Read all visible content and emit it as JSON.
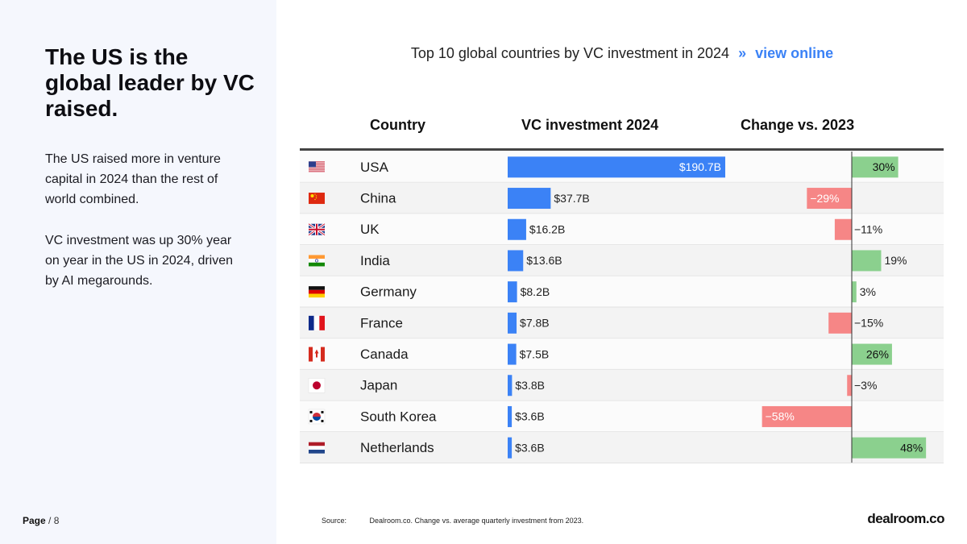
{
  "left": {
    "headline": "The US is the global leader by VC raised.",
    "paragraph1": "The US raised more in venture capital in 2024 than the rest of world combined.",
    "paragraph2": "VC investment was up 30% year on year in the US in 2024, driven by AI megarounds.",
    "page_label": "Page",
    "page_number": "/ 8"
  },
  "chart_title": "Top 10 global countries by VC investment in 2024",
  "chart_title_separator": "»",
  "view_online": "view online",
  "headers": {
    "country": "Country",
    "vc": "VC investment 2024",
    "change": "Change vs. 2023"
  },
  "colors": {
    "vc_bar": "#3b82f6",
    "positive": "#8bd08e",
    "negative": "#f68686"
  },
  "chart_data": {
    "type": "table",
    "title": "Top 10 global countries by VC investment in 2024",
    "columns": [
      "Country",
      "VC investment 2024",
      "Change vs. 2023"
    ],
    "vc_unit": "$B",
    "rows": [
      {
        "flag": "us-flag-icon",
        "country": "USA",
        "vc": 190.7,
        "vc_label": "$190.7B",
        "change": 30,
        "change_label": "30%"
      },
      {
        "flag": "china-flag-icon",
        "country": "China",
        "vc": 37.7,
        "vc_label": "$37.7B",
        "change": -29,
        "change_label": "−29%"
      },
      {
        "flag": "uk-flag-icon",
        "country": "UK",
        "vc": 16.2,
        "vc_label": "$16.2B",
        "change": -11,
        "change_label": "−11%"
      },
      {
        "flag": "india-flag-icon",
        "country": "India",
        "vc": 13.6,
        "vc_label": "$13.6B",
        "change": 19,
        "change_label": "19%"
      },
      {
        "flag": "germany-flag-icon",
        "country": "Germany",
        "vc": 8.2,
        "vc_label": "$8.2B",
        "change": 3,
        "change_label": "3%"
      },
      {
        "flag": "france-flag-icon",
        "country": "France",
        "vc": 7.8,
        "vc_label": "$7.8B",
        "change": -15,
        "change_label": "−15%"
      },
      {
        "flag": "canada-flag-icon",
        "country": "Canada",
        "vc": 7.5,
        "vc_label": "$7.5B",
        "change": 26,
        "change_label": "26%"
      },
      {
        "flag": "japan-flag-icon",
        "country": "Japan",
        "vc": 3.8,
        "vc_label": "$3.8B",
        "change": -3,
        "change_label": "−3%"
      },
      {
        "flag": "south-korea-flag-icon",
        "country": "South Korea",
        "vc": 3.6,
        "vc_label": "$3.6B",
        "change": -58,
        "change_label": "−58%"
      },
      {
        "flag": "netherlands-flag-icon",
        "country": "Netherlands",
        "vc": 3.6,
        "vc_label": "$3.6B",
        "change": 48,
        "change_label": "48%"
      }
    ]
  },
  "source": {
    "label": "Source:",
    "text": "Dealroom.co. Change vs. average quarterly investment from 2023."
  },
  "logo": "dealroom.co"
}
